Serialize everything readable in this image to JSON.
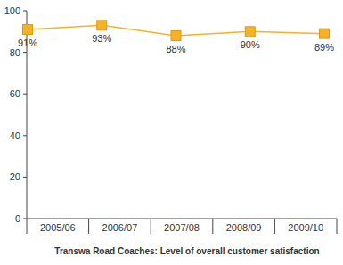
{
  "chart_data": {
    "type": "line",
    "title": "Transwa Road Coaches: Level of overall customer satisfaction",
    "categories": [
      "2005/06",
      "2006/07",
      "2007/08",
      "2008/09",
      "2009/10"
    ],
    "values": [
      91,
      93,
      88,
      90,
      89
    ],
    "value_labels": [
      "91%",
      "93%",
      "88%",
      "90%",
      "89%"
    ],
    "color": "#f5b228",
    "marker": "square",
    "data_labels": true,
    "grid": false,
    "ylim": [
      0,
      100
    ],
    "yticks": [
      0,
      20,
      40,
      60,
      80,
      100
    ]
  }
}
